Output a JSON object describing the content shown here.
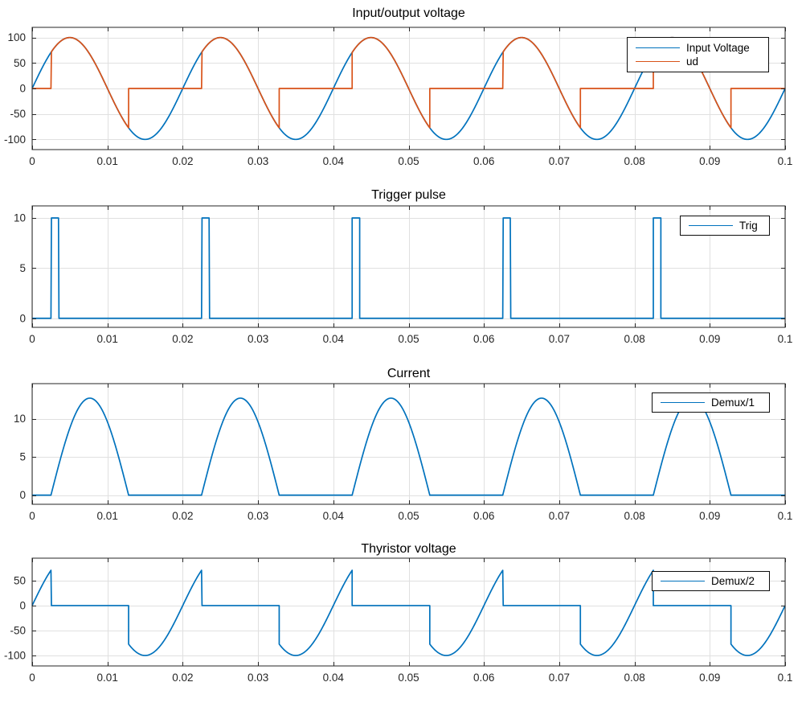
{
  "figure": {
    "background": "#ffffff",
    "axes_edge_color": "#262626",
    "grid_color": "#e0e0e0",
    "tick_label_color": "#262626",
    "title_color": "#000000"
  },
  "chart_data": [
    {
      "type": "line",
      "title": "Input/output voltage",
      "xlabel": "",
      "ylabel": "",
      "xlim": [
        0,
        0.1
      ],
      "ylim": [
        -120,
        120
      ],
      "xticks": [
        0,
        0.01,
        0.02,
        0.03,
        0.04,
        0.05,
        0.06,
        0.07,
        0.08,
        0.09,
        0.1
      ],
      "xtick_labels": [
        "0",
        "0.01",
        "0.02",
        "0.03",
        "0.04",
        "0.05",
        "0.06",
        "0.07",
        "0.08",
        "0.09",
        "0.1"
      ],
      "yticks": [
        -100,
        -50,
        0,
        50,
        100
      ],
      "ytick_labels": [
        "-100",
        "-50",
        "0",
        "50",
        "100"
      ],
      "grid": true,
      "legend": {
        "position": "top-right",
        "entries": [
          "Input Voltage",
          "ud"
        ]
      },
      "series": [
        {
          "name": "Input Voltage",
          "color": "#0072BD",
          "kind": "sine",
          "amplitude": 100,
          "frequency_hz": 50
        },
        {
          "name": "ud",
          "color": "#D95319",
          "kind": "gated_sine",
          "amplitude": 100,
          "frequency_hz": 50,
          "period_s": 0.02,
          "gate_start_s": 0.0025,
          "gate_end_s": 0.01281,
          "inside": "sine",
          "outside": 0
        }
      ]
    },
    {
      "type": "line",
      "title": "Trigger pulse",
      "xlabel": "",
      "ylabel": "",
      "xlim": [
        0,
        0.1
      ],
      "ylim": [
        -0.9,
        11.2
      ],
      "xticks": [
        0,
        0.01,
        0.02,
        0.03,
        0.04,
        0.05,
        0.06,
        0.07,
        0.08,
        0.09,
        0.1
      ],
      "xtick_labels": [
        "0",
        "0.01",
        "0.02",
        "0.03",
        "0.04",
        "0.05",
        "0.06",
        "0.07",
        "0.08",
        "0.09",
        "0.1"
      ],
      "yticks": [
        0,
        5,
        10
      ],
      "ytick_labels": [
        "0",
        "5",
        "10"
      ],
      "grid": true,
      "legend": {
        "position": "top-right",
        "entries": [
          "Trig"
        ]
      },
      "series": [
        {
          "name": "Trig",
          "color": "#0072BD",
          "kind": "pulse",
          "period_s": 0.02,
          "start_s": 0.0025,
          "width_s": 0.001,
          "high": 10,
          "low": 0
        }
      ]
    },
    {
      "type": "line",
      "title": "Current",
      "xlabel": "",
      "ylabel": "",
      "xlim": [
        0,
        0.1
      ],
      "ylim": [
        -1.2,
        14.6
      ],
      "xticks": [
        0,
        0.01,
        0.02,
        0.03,
        0.04,
        0.05,
        0.06,
        0.07,
        0.08,
        0.09,
        0.1
      ],
      "xtick_labels": [
        "0",
        "0.01",
        "0.02",
        "0.03",
        "0.04",
        "0.05",
        "0.06",
        "0.07",
        "0.08",
        "0.09",
        "0.1"
      ],
      "yticks": [
        0,
        5,
        10
      ],
      "ytick_labels": [
        "0",
        "5",
        "10"
      ],
      "grid": true,
      "legend": {
        "position": "top-right",
        "entries": [
          "Demux/1"
        ]
      },
      "series": [
        {
          "name": "Demux/1",
          "color": "#0072BD",
          "kind": "sine_hump",
          "period_s": 0.02,
          "start_s": 0.0025,
          "end_s": 0.01281,
          "peak": 12.7
        }
      ]
    },
    {
      "type": "line",
      "title": "Thyristor voltage",
      "xlabel": "",
      "ylabel": "",
      "xlim": [
        0,
        0.1
      ],
      "ylim": [
        -121,
        95
      ],
      "xticks": [
        0,
        0.01,
        0.02,
        0.03,
        0.04,
        0.05,
        0.06,
        0.07,
        0.08,
        0.09,
        0.1
      ],
      "xtick_labels": [
        "0",
        "0.01",
        "0.02",
        "0.03",
        "0.04",
        "0.05",
        "0.06",
        "0.07",
        "0.08",
        "0.09",
        "0.1"
      ],
      "yticks": [
        -100,
        -50,
        0,
        50
      ],
      "ytick_labels": [
        "-100",
        "-50",
        "0",
        "50"
      ],
      "grid": true,
      "legend": {
        "position": "top-right",
        "entries": [
          "Demux/2"
        ]
      },
      "series": [
        {
          "name": "Demux/2",
          "color": "#0072BD",
          "kind": "gated_sine",
          "amplitude": 100,
          "frequency_hz": 50,
          "period_s": 0.02,
          "gate_start_s": 0.0025,
          "gate_end_s": 0.01281,
          "inside": 0,
          "outside": "sine"
        }
      ]
    }
  ]
}
